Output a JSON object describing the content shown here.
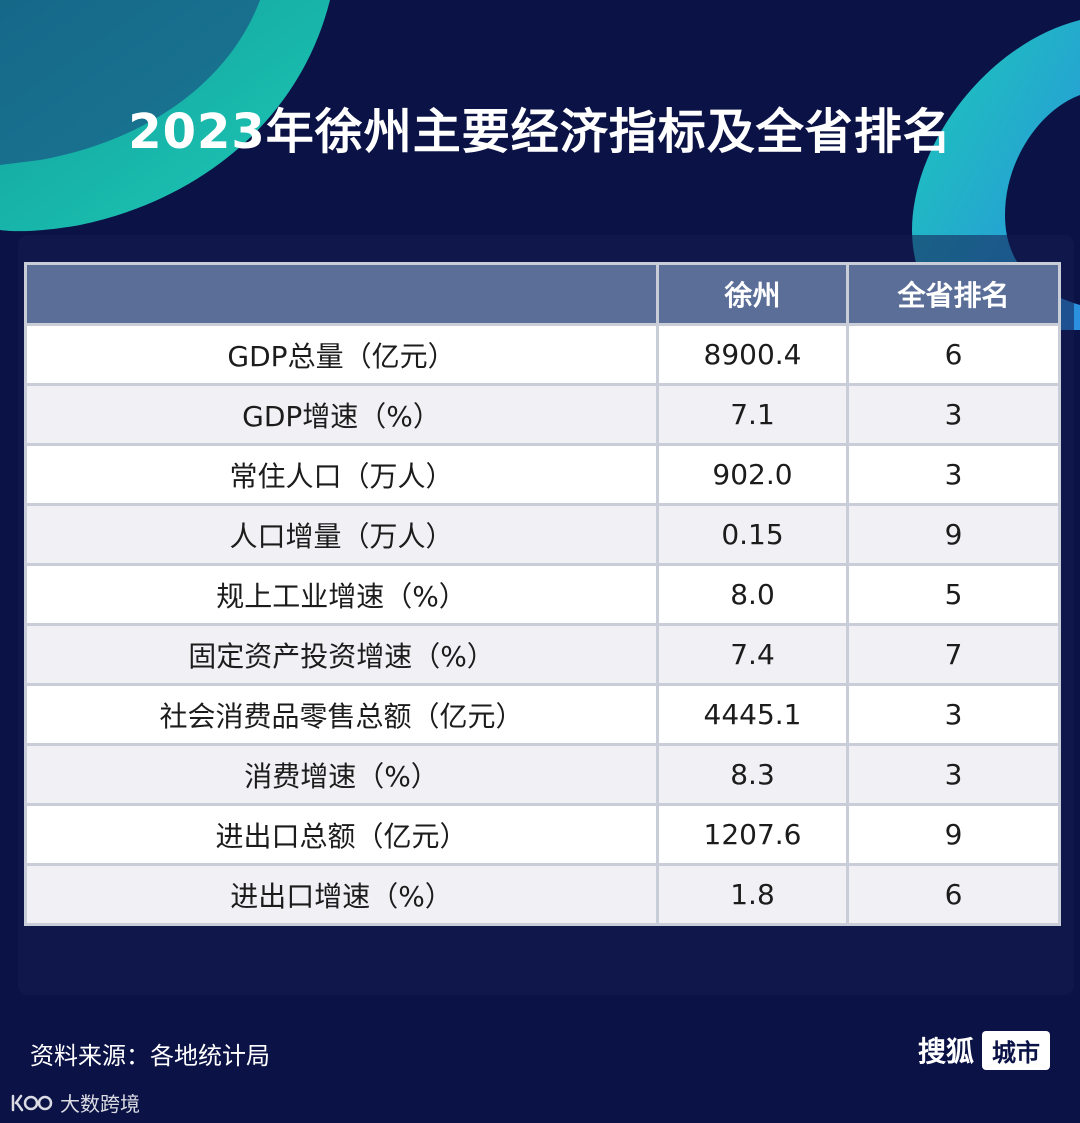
{
  "title": "2023年徐州主要经济指标及全省排名",
  "table": {
    "headers": [
      "",
      "徐州",
      "全省排名"
    ],
    "rows": [
      [
        "GDP总量（亿元）",
        "8900.4",
        "6"
      ],
      [
        "GDP增速（%）",
        "7.1",
        "3"
      ],
      [
        "常住人口（万人）",
        "902.0",
        "3"
      ],
      [
        "人口增量（万人）",
        "0.15",
        "9"
      ],
      [
        "规上工业增速（%）",
        "8.0",
        "5"
      ],
      [
        "固定资产投资增速（%）",
        "7.4",
        "7"
      ],
      [
        "社会消费品零售总额（亿元）",
        "4445.1",
        "3"
      ],
      [
        "消费增速（%）",
        "8.3",
        "3"
      ],
      [
        "进出口总额（亿元）",
        "1207.6",
        "9"
      ],
      [
        "进出口增速（%）",
        "1.8",
        "6"
      ]
    ]
  },
  "footer": {
    "source": "资料来源：各地统计局",
    "brand_name": "搜狐",
    "brand_tag": "城市"
  },
  "watermark": {
    "text": "大数跨境"
  },
  "colors": {
    "background": "#0b1245",
    "accent_teal": "#17c2b0",
    "header_row": "#5a6e98"
  }
}
